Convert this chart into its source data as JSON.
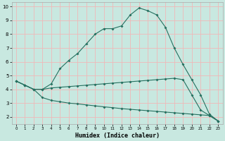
{
  "xlabel": "Humidex (Indice chaleur)",
  "bg_color": "#c8e8e0",
  "grid_color": "#f0b8b8",
  "line_color": "#267060",
  "xlim": [
    -0.5,
    23.5
  ],
  "ylim": [
    1.5,
    10.3
  ],
  "x_ticks": [
    0,
    1,
    2,
    3,
    4,
    5,
    6,
    7,
    8,
    9,
    10,
    11,
    12,
    13,
    14,
    15,
    16,
    17,
    18,
    19,
    20,
    21,
    22,
    23
  ],
  "y_ticks": [
    2,
    3,
    4,
    5,
    6,
    7,
    8,
    9,
    10
  ],
  "line1_x": [
    0,
    1,
    2,
    3,
    4,
    5,
    6,
    7,
    8,
    9,
    10,
    11,
    12,
    13,
    14,
    15,
    16,
    17,
    18,
    19,
    20,
    21,
    22,
    23
  ],
  "line1_y": [
    4.6,
    4.3,
    4.0,
    4.0,
    4.4,
    5.5,
    6.1,
    6.6,
    7.3,
    8.0,
    8.4,
    8.4,
    8.6,
    9.4,
    9.9,
    9.7,
    9.4,
    8.5,
    7.0,
    5.8,
    4.7,
    3.6,
    2.2,
    1.7
  ],
  "line2_x": [
    0,
    1,
    2,
    3,
    4,
    5,
    6,
    7,
    8,
    9,
    10,
    11,
    12,
    13,
    14,
    15,
    16,
    17,
    18,
    19,
    20,
    21,
    22,
    23
  ],
  "line2_y": [
    4.6,
    4.3,
    4.0,
    4.0,
    4.1,
    4.15,
    4.2,
    4.25,
    4.3,
    4.35,
    4.4,
    4.45,
    4.5,
    4.55,
    4.6,
    4.65,
    4.7,
    4.75,
    4.8,
    4.7,
    3.6,
    2.5,
    2.1,
    1.7
  ],
  "line3_x": [
    0,
    1,
    2,
    3,
    4,
    5,
    6,
    7,
    8,
    9,
    10,
    11,
    12,
    13,
    14,
    15,
    16,
    17,
    18,
    19,
    20,
    21,
    22,
    23
  ],
  "line3_y": [
    4.6,
    4.3,
    4.0,
    3.4,
    3.2,
    3.1,
    3.0,
    2.95,
    2.87,
    2.8,
    2.73,
    2.67,
    2.6,
    2.55,
    2.5,
    2.45,
    2.4,
    2.35,
    2.3,
    2.25,
    2.2,
    2.15,
    2.1,
    1.7
  ]
}
